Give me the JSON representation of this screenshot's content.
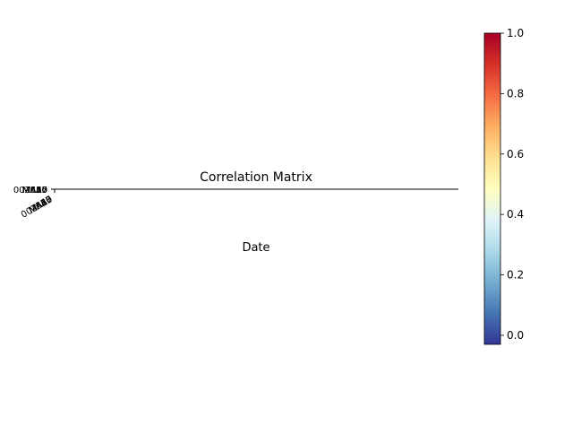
{
  "chart_data": [
    {
      "type": "heatmap",
      "title": "Correlation Matrix",
      "xlabel": "Date",
      "ylabel": "",
      "row_labels": [
        "002557",
        "MA5",
        "MA10",
        "MA20",
        "MA30",
        "MA60"
      ],
      "col_labels": [
        "002557",
        "MA5",
        "MA10",
        "MA20",
        "MA30",
        "MA60"
      ],
      "colormap": "RdYlBu_r",
      "colormap_colors": [
        "#313695",
        "#4575b4",
        "#74add1",
        "#abd9e9",
        "#e0f3f8",
        "#ffffbf",
        "#fee090",
        "#fdae61",
        "#f46d43",
        "#d73027",
        "#a50026"
      ],
      "colorbar": {
        "range": [
          -0.03,
          1.0
        ],
        "ticks": [
          0.0,
          0.2,
          0.4,
          0.6,
          0.8,
          1.0
        ],
        "tick_labels": [
          "0.0",
          "0.2",
          "0.4",
          "0.6",
          "0.8",
          "1.0"
        ]
      }
    }
  ]
}
